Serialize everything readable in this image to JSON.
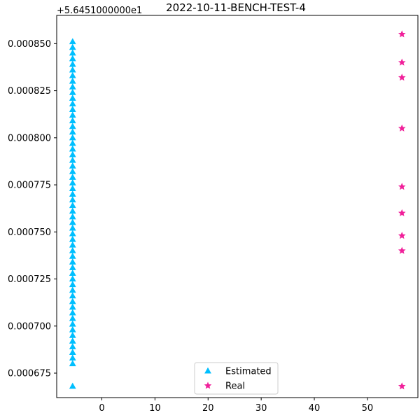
{
  "chart_data": {
    "type": "scatter",
    "title": "2022-10-11-BENCH-TEST-4",
    "xlabel": "",
    "ylabel": "",
    "y_offset_label": "+5.6451000000e1",
    "xlim": [
      -8.5,
      59.5
    ],
    "ylim": [
      0.000662,
      0.000865
    ],
    "x_ticks": [
      0,
      10,
      20,
      30,
      40,
      50
    ],
    "y_ticks": [
      0.000675,
      0.0007,
      0.000725,
      0.00075,
      0.000775,
      0.0008,
      0.000825,
      0.00085
    ],
    "y_tick_labels": [
      "0.000675",
      "0.000700",
      "0.000725",
      "0.000750",
      "0.000775",
      "0.000800",
      "0.000825",
      "0.000850"
    ],
    "grid": false,
    "legend_position": "bottom-center",
    "series": [
      {
        "name": "Estimated",
        "marker": "triangle",
        "color": "#00bfff",
        "x": -5.5,
        "y": [
          0.000668,
          0.00068,
          0.000683,
          0.000686,
          0.000689,
          0.000692,
          0.000695,
          0.000698,
          0.000701,
          0.000704,
          0.000707,
          0.00071,
          0.000713,
          0.000716,
          0.000719,
          0.000722,
          0.000725,
          0.000728,
          0.000731,
          0.000734,
          0.000737,
          0.00074,
          0.000743,
          0.000746,
          0.000749,
          0.000752,
          0.000755,
          0.000758,
          0.000761,
          0.000764,
          0.000767,
          0.00077,
          0.000773,
          0.000776,
          0.000779,
          0.000782,
          0.000785,
          0.000788,
          0.000791,
          0.000794,
          0.000797,
          0.0008,
          0.000803,
          0.000806,
          0.000809,
          0.000812,
          0.000815,
          0.000818,
          0.000821,
          0.000824,
          0.000827,
          0.00083,
          0.000833,
          0.000836,
          0.000839,
          0.000842,
          0.000845,
          0.000848,
          0.000851
        ]
      },
      {
        "name": "Real",
        "marker": "star",
        "color": "#f0209a",
        "x": 56.5,
        "y": [
          0.000855,
          0.00084,
          0.000832,
          0.000805,
          0.000774,
          0.00076,
          0.000748,
          0.00074,
          0.000668
        ]
      }
    ]
  }
}
